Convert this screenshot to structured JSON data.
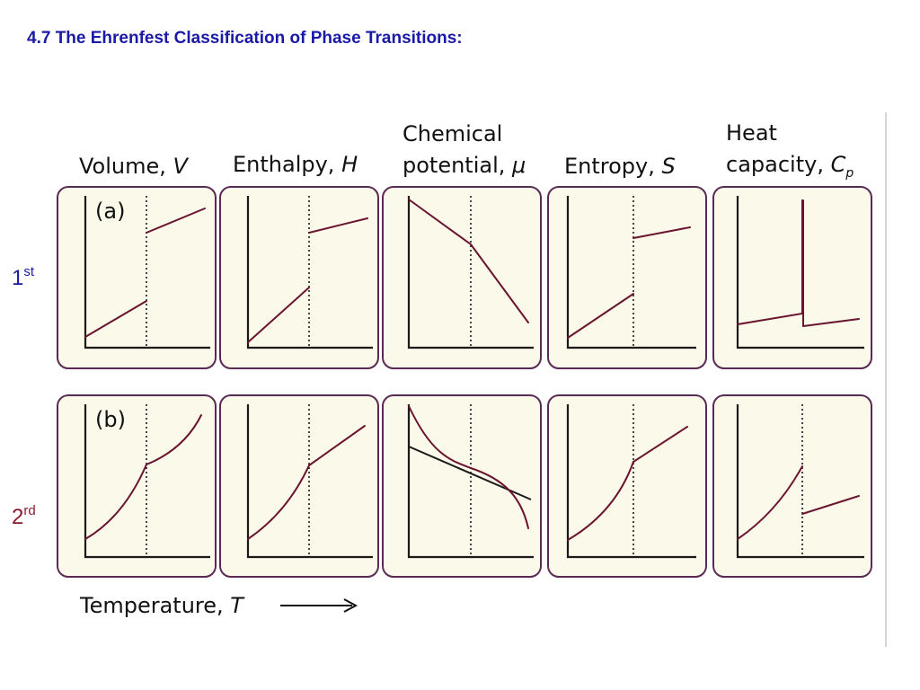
{
  "title": "4.7 The Ehrenfest Classification of Phase Transitions:",
  "row_labels": [
    {
      "base": "1",
      "sup": "st",
      "color": "#1a1aa6"
    },
    {
      "base": "2",
      "sup": "rd",
      "color": "#8b1a2a"
    }
  ],
  "columns": [
    {
      "line1": "",
      "name": "Volume, ",
      "symbol": "V",
      "sub": ""
    },
    {
      "line1": "",
      "name": "Enthalpy, ",
      "symbol": "H",
      "sub": ""
    },
    {
      "line1": "Chemical",
      "name": "potential, ",
      "symbol": "μ",
      "sub": ""
    },
    {
      "line1": "",
      "name": "Entropy, ",
      "symbol": "S",
      "sub": ""
    },
    {
      "line1": "Heat",
      "name": "capacity, ",
      "symbol": "C",
      "sub": "p"
    }
  ],
  "panel_tags": [
    "(a)",
    "(b)"
  ],
  "x_axis": {
    "label": "Temperature, ",
    "symbol": "T"
  },
  "colors": {
    "frame": "#5a2a55",
    "panel_fill": "#fbf9ea",
    "curve": "#6a1530",
    "title": "#1a1aa6"
  }
}
